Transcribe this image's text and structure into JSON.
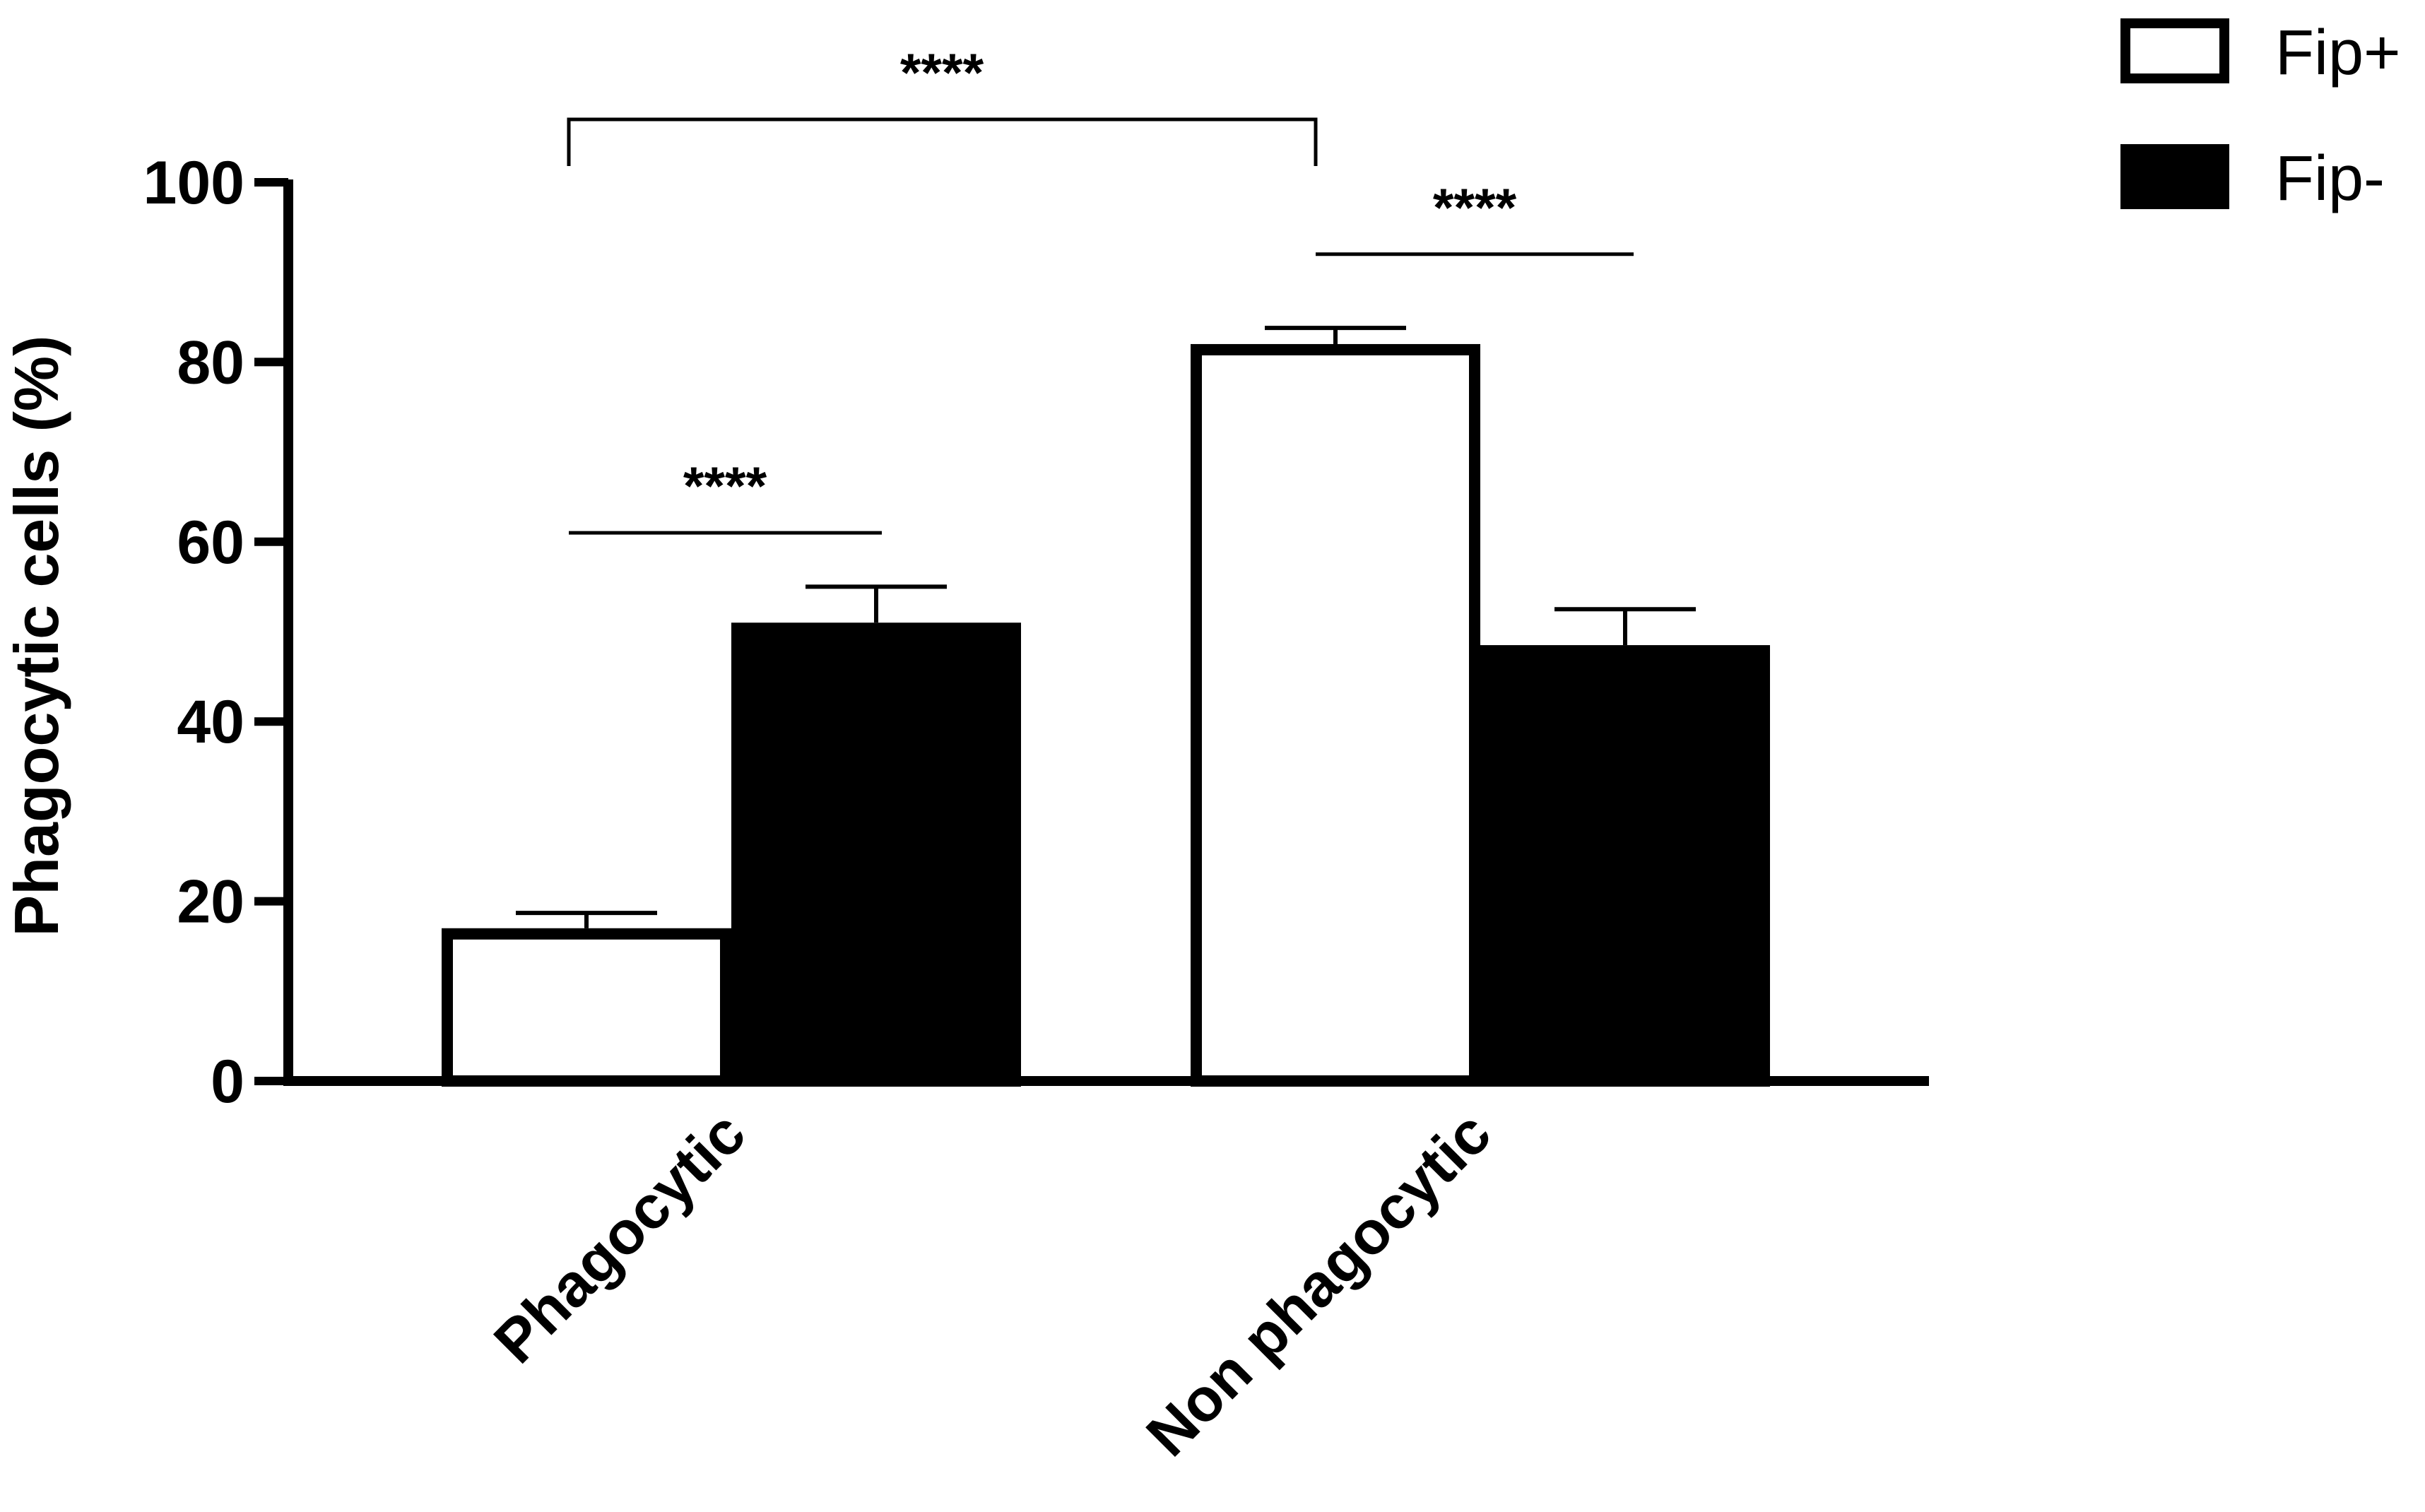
{
  "chart_data": {
    "type": "bar",
    "categories": [
      "Phagocytic",
      "Non phagocytic"
    ],
    "series": [
      {
        "name": "Fip+",
        "values": [
          17,
          82
        ],
        "errors": [
          1.7,
          1.8
        ],
        "fill": "#ffffff",
        "stroke": "#000000"
      },
      {
        "name": "Fip-",
        "values": [
          51,
          48.5
        ],
        "errors": [
          4,
          4
        ],
        "fill": "#000000",
        "stroke": "#000000"
      }
    ],
    "ylabel": "Phagocytic cells (%)",
    "xlabel": "",
    "ylim": [
      0,
      100
    ],
    "yticks": [
      "0",
      "20",
      "40",
      "60",
      "80",
      "100"
    ],
    "grid": false,
    "legend_position": "top-right",
    "significance": [
      {
        "label": "****",
        "from": "Phagocytic / Fip+",
        "to": "Phagocytic / Fip-",
        "y": 61
      },
      {
        "label": "****",
        "from": "Non phagocytic / Fip+",
        "to": "Non phagocytic / Fip-",
        "y": 92
      },
      {
        "label": "****",
        "from": "Phagocytic / Fip+",
        "to": "Non phagocytic / Fip+",
        "y": 107,
        "bracket": true
      }
    ]
  }
}
